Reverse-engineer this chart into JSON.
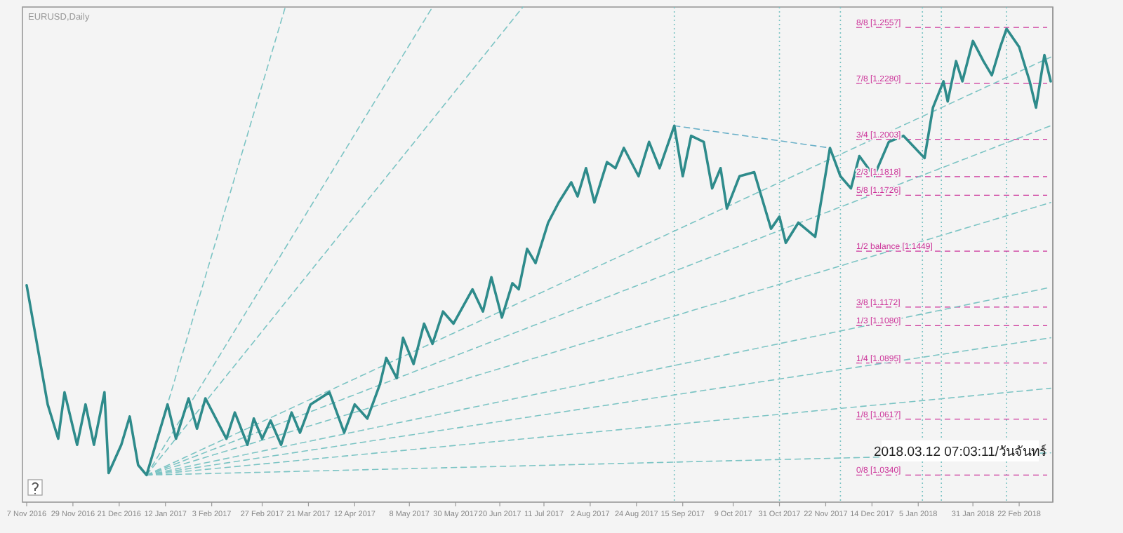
{
  "chart_data": {
    "type": "line",
    "title": "EURUSD,Daily",
    "annotations": [
      "2018.03.12 07:03:11/วันจันทร์"
    ],
    "tick_labels": "x",
    "xlim": [
      "2016-11-05",
      "2018-03-10"
    ],
    "ylim": [
      1.0206,
      1.2658
    ],
    "xticks": [
      {
        "value": "2016-11-07",
        "label": "7 Nov 2016"
      },
      {
        "value": "2016-11-29",
        "label": "29 Nov 2016"
      },
      {
        "value": "2016-12-21",
        "label": "21 Dec 2016"
      },
      {
        "value": "2017-01-12",
        "label": "12 Jan 2017"
      },
      {
        "value": "2017-02-03",
        "label": "3 Feb 2017"
      },
      {
        "value": "2017-02-27",
        "label": "27 Feb 2017"
      },
      {
        "value": "2017-03-21",
        "label": "21 Mar 2017"
      },
      {
        "value": "2017-04-12",
        "label": "12 Apr 2017"
      },
      {
        "value": "2017-05-08",
        "label": "8 May 2017"
      },
      {
        "value": "2017-05-30",
        "label": "30 May 2017"
      },
      {
        "value": "2017-06-20",
        "label": "20 Jun 2017"
      },
      {
        "value": "2017-07-11",
        "label": "11 Jul 2017"
      },
      {
        "value": "2017-08-02",
        "label": "2 Aug 2017"
      },
      {
        "value": "2017-08-24",
        "label": "24 Aug 2017"
      },
      {
        "value": "2017-09-15",
        "label": "15 Sep 2017"
      },
      {
        "value": "2017-10-09",
        "label": "9 Oct 2017"
      },
      {
        "value": "2017-10-31",
        "label": "31 Oct 2017"
      },
      {
        "value": "2017-11-22",
        "label": "22 Nov 2017"
      },
      {
        "value": "2017-12-14",
        "label": "14 Dec 2017"
      },
      {
        "value": "2018-01-05",
        "label": "5 Jan 2018"
      },
      {
        "value": "2018-01-31",
        "label": "31 Jan 2018"
      },
      {
        "value": "2018-02-22",
        "label": "22 Feb 2018"
      }
    ],
    "series": [
      {
        "type": "line",
        "line_style": "dashed",
        "color": "#7cc4c4",
        "x": [
          "2017-01-03",
          "2017-03-10"
        ],
        "values": [
          1.034,
          1.2658
        ]
      },
      {
        "type": "line",
        "line_style": "dashed",
        "color": "#7cc4c4",
        "x": [
          "2017-01-03",
          "2017-05-19"
        ],
        "values": [
          1.034,
          1.2658
        ]
      },
      {
        "type": "line",
        "line_style": "dashed",
        "color": "#7cc4c4",
        "x": [
          "2017-01-03",
          "2017-07-01"
        ],
        "values": [
          1.034,
          1.2658
        ]
      },
      {
        "type": "line",
        "line_style": "dashed",
        "color": "#7cc4c4",
        "x": [
          "2017-01-03",
          "2018-03-09"
        ],
        "values": [
          1.034,
          1.241
        ]
      },
      {
        "type": "line",
        "line_style": "dashed",
        "color": "#7cc4c4",
        "x": [
          "2017-01-03",
          "2018-03-09"
        ],
        "values": [
          1.034,
          1.207
        ]
      },
      {
        "type": "line",
        "line_style": "dashed",
        "color": "#7cc4c4",
        "x": [
          "2017-01-03",
          "2018-03-09"
        ],
        "values": [
          1.034,
          1.169
        ]
      },
      {
        "type": "line",
        "line_style": "dashed",
        "color": "#7cc4c4",
        "x": [
          "2017-01-03",
          "2018-03-09"
        ],
        "values": [
          1.034,
          1.127
        ]
      },
      {
        "type": "line",
        "line_style": "dashed",
        "color": "#7cc4c4",
        "x": [
          "2017-01-03",
          "2018-03-09"
        ],
        "values": [
          1.034,
          1.102
        ]
      },
      {
        "type": "line",
        "line_style": "dashed",
        "color": "#7cc4c4",
        "x": [
          "2017-01-03",
          "2018-03-09"
        ],
        "values": [
          1.034,
          1.077
        ]
      },
      {
        "type": "line",
        "line_style": "dashed",
        "color": "#7cc4c4",
        "x": [
          "2017-01-03",
          "2018-03-09"
        ],
        "values": [
          1.034,
          1.045
        ]
      },
      {
        "line_style": "dashed",
        "color": "#6ab0c8",
        "x": [
          "2017-09-11",
          "2017-11-24"
        ],
        "values": [
          1.207,
          1.196
        ]
      },
      {
        "type": "line",
        "line_style": "solid",
        "color": "#2e8b8b",
        "x": [
          "2016-11-07",
          "2016-11-17",
          "2016-11-22",
          "2016-11-25",
          "2016-12-01",
          "2016-12-05",
          "2016-12-09",
          "2016-12-14",
          "2016-12-16",
          "2016-12-22",
          "2016-12-26",
          "2016-12-30",
          "2017-01-03",
          "2017-01-09",
          "2017-01-13",
          "2017-01-17",
          "2017-01-23",
          "2017-01-27",
          "2017-01-31",
          "2017-02-10",
          "2017-02-14",
          "2017-02-20",
          "2017-02-23",
          "2017-02-27",
          "2017-03-03",
          "2017-03-08",
          "2017-03-13",
          "2017-03-17",
          "2017-03-22",
          "2017-03-31",
          "2017-04-07",
          "2017-04-12",
          "2017-04-18",
          "2017-04-24",
          "2017-04-27",
          "2017-05-02",
          "2017-05-05",
          "2017-05-10",
          "2017-05-15",
          "2017-05-19",
          "2017-05-24",
          "2017-05-29",
          "2017-06-07",
          "2017-06-12",
          "2017-06-16",
          "2017-06-21",
          "2017-06-26",
          "2017-06-29",
          "2017-07-03",
          "2017-07-07",
          "2017-07-13",
          "2017-07-18",
          "2017-07-24",
          "2017-07-27",
          "2017-07-31",
          "2017-08-04",
          "2017-08-10",
          "2017-08-14",
          "2017-08-18",
          "2017-08-25",
          "2017-08-30",
          "2017-09-04",
          "2017-09-11",
          "2017-09-15",
          "2017-09-19",
          "2017-09-25",
          "2017-09-29",
          "2017-10-03",
          "2017-10-06",
          "2017-10-12",
          "2017-10-19",
          "2017-10-27",
          "2017-10-31",
          "2017-11-03",
          "2017-11-09",
          "2017-11-17",
          "2017-11-24",
          "2017-11-29",
          "2017-12-04",
          "2017-12-08",
          "2017-12-15",
          "2017-12-22",
          "2017-12-29",
          "2018-01-08",
          "2018-01-12",
          "2018-01-17",
          "2018-01-19",
          "2018-01-23",
          "2018-01-26",
          "2018-01-31",
          "2018-02-05",
          "2018-02-09",
          "2018-02-13",
          "2018-02-16",
          "2018-02-22",
          "2018-02-27",
          "2018-03-02",
          "2018-03-06",
          "2018-03-09"
        ],
        "values": [
          1.128,
          1.069,
          1.052,
          1.075,
          1.049,
          1.069,
          1.049,
          1.075,
          1.035,
          1.049,
          1.063,
          1.039,
          1.034,
          1.055,
          1.069,
          1.052,
          1.072,
          1.057,
          1.072,
          1.052,
          1.065,
          1.049,
          1.062,
          1.052,
          1.061,
          1.049,
          1.065,
          1.055,
          1.069,
          1.075,
          1.055,
          1.069,
          1.062,
          1.079,
          1.092,
          1.082,
          1.102,
          1.089,
          1.109,
          1.099,
          1.115,
          1.109,
          1.126,
          1.115,
          1.132,
          1.112,
          1.129,
          1.126,
          1.146,
          1.139,
          1.159,
          1.169,
          1.179,
          1.172,
          1.186,
          1.169,
          1.189,
          1.186,
          1.196,
          1.182,
          1.199,
          1.186,
          1.207,
          1.182,
          1.202,
          1.199,
          1.176,
          1.186,
          1.166,
          1.182,
          1.184,
          1.156,
          1.162,
          1.149,
          1.159,
          1.152,
          1.196,
          1.182,
          1.176,
          1.192,
          1.182,
          1.199,
          1.202,
          1.191,
          1.216,
          1.229,
          1.219,
          1.239,
          1.229,
          1.249,
          1.239,
          1.232,
          1.246,
          1.255,
          1.246,
          1.229,
          1.216,
          1.242,
          1.229
        ]
      }
    ],
    "ref_lines": [
      {
        "axis": "x",
        "value": "2017-09-11",
        "color": "#7cc4c4",
        "line_style": "dotted"
      },
      {
        "axis": "x",
        "value": "2017-10-31",
        "color": "#7cc4c4",
        "line_style": "dotted"
      },
      {
        "axis": "x",
        "value": "2017-11-29",
        "color": "#7cc4c4",
        "line_style": "dotted"
      },
      {
        "axis": "x",
        "value": "2018-01-07",
        "color": "#7cc4c4",
        "line_style": "dotted"
      },
      {
        "axis": "x",
        "value": "2018-01-16",
        "color": "#7cc4c4",
        "line_style": "dotted"
      },
      {
        "axis": "x",
        "value": "2018-02-16",
        "color": "#7cc4c4",
        "line_style": "dotted"
      },
      {
        "axis": "y",
        "value": 1.2557,
        "label": "8/8 [1.2557]",
        "color": "#cc3399",
        "line_style": "dashed"
      },
      {
        "axis": "y",
        "value": 1.228,
        "label": "7/8 [1.2280]",
        "color": "#cc3399",
        "line_style": "dashed"
      },
      {
        "axis": "y",
        "value": 1.2003,
        "label": "3/4 [1.2003]",
        "color": "#cc3399",
        "line_style": "dashed"
      },
      {
        "axis": "y",
        "value": 1.1818,
        "label": "2/3 [1.1818]",
        "color": "#cc3399",
        "line_style": "dashed"
      },
      {
        "axis": "y",
        "value": 1.1726,
        "label": "5/8 [1.1726]",
        "color": "#cc3399",
        "line_style": "dashed"
      },
      {
        "axis": "y",
        "value": 1.1449,
        "label": "1/2 balance [1.1449]",
        "color": "#cc3399",
        "line_style": "dashed"
      },
      {
        "axis": "y",
        "value": 1.1172,
        "label": "3/8 [1.1172]",
        "color": "#cc3399",
        "line_style": "dashed"
      },
      {
        "axis": "y",
        "value": 1.108,
        "label": "1/3 [1.1080]",
        "color": "#cc3399",
        "line_style": "dashed"
      },
      {
        "axis": "y",
        "value": 1.0895,
        "label": "1/4 [1.0895]",
        "color": "#cc3399",
        "line_style": "dashed"
      },
      {
        "axis": "y",
        "value": 1.0617,
        "label": "1/8 [1.0617]",
        "color": "#cc3399",
        "line_style": "dashed"
      },
      {
        "axis": "y",
        "value": 1.034,
        "label": "0/8 [1.0340]",
        "color": "#cc3399",
        "line_style": "dashed"
      }
    ]
  }
}
